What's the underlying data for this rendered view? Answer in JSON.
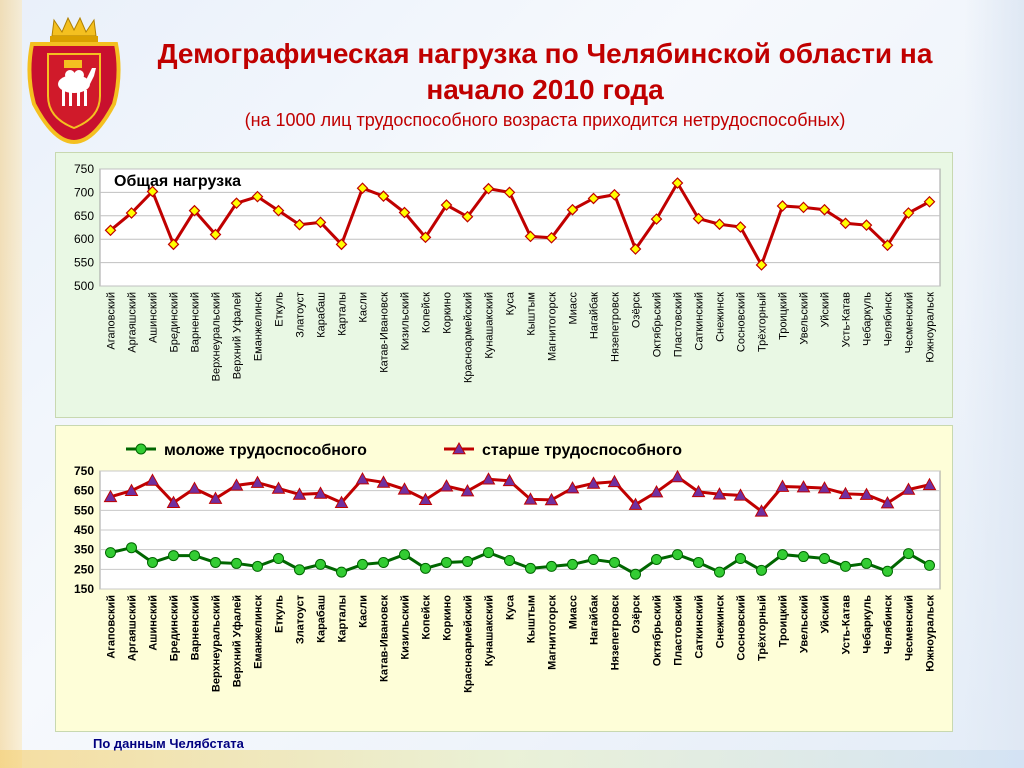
{
  "header": {
    "title": "Демографическая нагрузка по Челябинской области на начало 2010 года",
    "subtitle": "(на 1000 лиц трудоспособного возраста приходится нетрудоспособных)"
  },
  "footnote": "По данным Челябстата",
  "colors": {
    "title": "#c00000",
    "line_total": "#c00000",
    "marker_fill": "#ffff00",
    "line_young": "#006600",
    "marker_young": "#33cc33",
    "line_old": "#c00000",
    "marker_old": "#7030a0",
    "panel1_bg": "#e9f8e4",
    "panel2_bg": "#fefed8"
  },
  "chart_data": [
    {
      "type": "line",
      "title": "Общая нагрузка",
      "ylim": [
        500,
        750
      ],
      "yticks": [
        500,
        550,
        600,
        650,
        700,
        750
      ],
      "categories": [
        "Агаповский",
        "Аргаяшский",
        "Ашинский",
        "Брединский",
        "Варненский",
        "Верхнеуральский",
        "Верхний Уфалей",
        "Еманжелинск",
        "Еткуль",
        "Златоуст",
        "Карабаш",
        "Карталы",
        "Касли",
        "Катав-Ивановск",
        "Кизильский",
        "Копейск",
        "Коркино",
        "Красноармейский",
        "Кунашакский",
        "Куса",
        "Кыштым",
        "Магнитогорск",
        "Миасс",
        "Нагайбак",
        "Нязепетровск",
        "Озёрск",
        "Октябрьский",
        "Пластовский",
        "Саткинский",
        "Снежинск",
        "Сосновский",
        "Трёхгорный",
        "Троицкий",
        "Увельский",
        "Уйский",
        "Усть-Катав",
        "Чебаркуль",
        "Челябинск",
        "Чесменский",
        "Южноуральск"
      ],
      "series": [
        {
          "values": [
            619,
            656,
            702,
            589,
            661,
            610,
            677,
            691,
            661,
            631,
            636,
            589,
            709,
            692,
            657,
            604,
            673,
            648,
            708,
            700,
            606,
            603,
            663,
            687,
            695,
            579,
            643,
            720,
            644,
            632,
            626,
            545,
            671,
            668,
            663,
            634,
            630,
            587,
            656,
            680
          ]
        }
      ]
    },
    {
      "type": "line",
      "ylim": [
        150,
        750
      ],
      "yticks": [
        150,
        250,
        350,
        450,
        550,
        650,
        750
      ],
      "categories": [
        "Агаповский",
        "Аргаяшский",
        "Ашинский",
        "Брединский",
        "Варненский",
        "Верхнеуральский",
        "Верхний Уфалей",
        "Еманжелинск",
        "Еткуль",
        "Златоуст",
        "Карабаш",
        "Карталы",
        "Касли",
        "Катав-Ивановск",
        "Кизильский",
        "Копейск",
        "Коркино",
        "Красноармейский",
        "Кунашакский",
        "Куса",
        "Кыштым",
        "Магнитогорск",
        "Миасс",
        "Нагайбак",
        "Нязепетровск",
        "Озёрск",
        "Октябрьский",
        "Пластовский",
        "Саткинский",
        "Снежинск",
        "Сосновский",
        "Трёхгорный",
        "Троицкий",
        "Увельский",
        "Уйский",
        "Усть-Катав",
        "Чебаркуль",
        "Челябинск",
        "Чесменский",
        "Южноуральск"
      ],
      "legend": "top",
      "series": [
        {
          "name": "моложе трудоспособного",
          "values": [
            335,
            360,
            285,
            320,
            320,
            285,
            280,
            265,
            305,
            248,
            275,
            236,
            275,
            285,
            325,
            255,
            285,
            290,
            335,
            295,
            255,
            265,
            275,
            300,
            285,
            225,
            300,
            325,
            285,
            236,
            305,
            245,
            325,
            315,
            305,
            265,
            280,
            240,
            330,
            270
          ]
        },
        {
          "name": "старше трудоспособного",
          "values": [
            619,
            650,
            702,
            589,
            661,
            610,
            677,
            691,
            661,
            631,
            636,
            589,
            709,
            692,
            657,
            604,
            673,
            648,
            708,
            700,
            606,
            603,
            663,
            687,
            695,
            579,
            643,
            720,
            644,
            632,
            626,
            545,
            671,
            668,
            663,
            634,
            630,
            587,
            656,
            680
          ]
        }
      ]
    }
  ]
}
